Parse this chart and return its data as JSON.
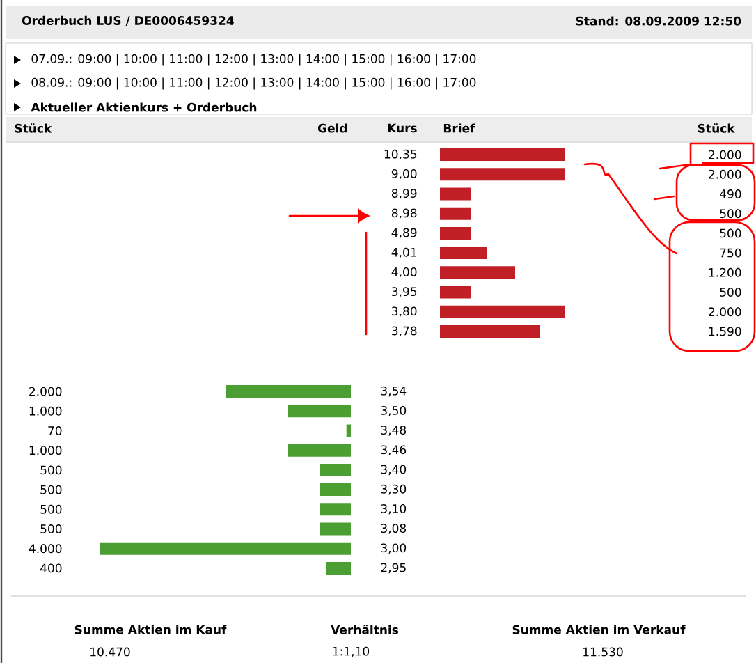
{
  "chart_data": [
    {
      "type": "other",
      "title": "Orderbuch LUS / DE0006459324",
      "subtitle": "Stand: 08.09.2009 12:50",
      "annotations": [
        "07.09.: 09:00 | 10:00 | 11:00 | 12:00 | 13:00 | 14:00 | 15:00 | 16:00 | 17:00",
        "08.09.: 09:00 | 10:00 | 11:00 | 12:00 | 13:00 | 14:00 | 15:00 | 16:00 | 17:00",
        "Aktueller Aktienkurs + Orderbuch"
      ]
    },
    {
      "type": "bar",
      "orientation": "horizontal",
      "categories": [
        "10,35",
        "9,00",
        "8,99",
        "8,98",
        "4,89",
        "4,01",
        "4,00",
        "3,95",
        "3,80",
        "3,78"
      ],
      "values": [
        2000,
        2000,
        490,
        500,
        500,
        750,
        1200,
        500,
        2000,
        1590
      ],
      "value_labels": [
        "2.000",
        "2.000",
        "490",
        "500",
        "500",
        "750",
        "1.200",
        "500",
        "2.000",
        "1.590"
      ],
      "color": "#c01f25",
      "annotations": [
        "Stück",
        "Geld",
        "Kurs",
        "Brief",
        "Stück"
      ]
    },
    {
      "type": "bar",
      "orientation": "horizontal",
      "categories": [
        "3,54",
        "3,50",
        "3,48",
        "3,46",
        "3,40",
        "3,30",
        "3,10",
        "3,08",
        "3,00",
        "2,95"
      ],
      "values": [
        2000,
        1000,
        70,
        1000,
        500,
        500,
        500,
        500,
        4000,
        400
      ],
      "value_labels": [
        "2.000",
        "1.000",
        "70",
        "1.000",
        "500",
        "500",
        "500",
        "500",
        "4.000",
        "400"
      ],
      "color": "#4a9e32",
      "annotations": [
        "Summe Aktien im Kauf",
        "10.470",
        "Verhältnis",
        "1:1,10",
        "Summe Aktien im Verkauf",
        "11.530"
      ]
    }
  ]
}
